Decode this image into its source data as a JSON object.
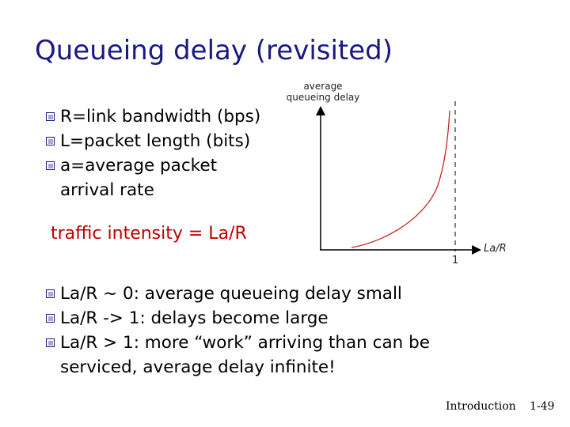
{
  "slide": {
    "title": "Queueing delay (revisited)",
    "bullets_top": [
      "R=link bandwidth (bps)",
      "L=packet length (bits)",
      "a=average packet",
      "arrival rate"
    ],
    "traffic_intensity": "traffic intensity = La/R",
    "bullets_bottom": [
      "La/R ~ 0: average queueing delay small",
      "La/R -> 1: delays become large",
      "La/R > 1: more “work” arriving than can be",
      "serviced, average delay infinite!"
    ],
    "footer_left": "Introduction",
    "footer_right": "1-49"
  },
  "figure": {
    "ylabel_line1": "average",
    "ylabel_line2": "queueing delay",
    "xlabel": "La/R",
    "tick_label": "1",
    "curve_color": "#cc2222",
    "axis_color": "#000000"
  },
  "colors": {
    "title": "#1a1a80",
    "accent": "#c00000",
    "bullet_box": "#1a1a80"
  }
}
